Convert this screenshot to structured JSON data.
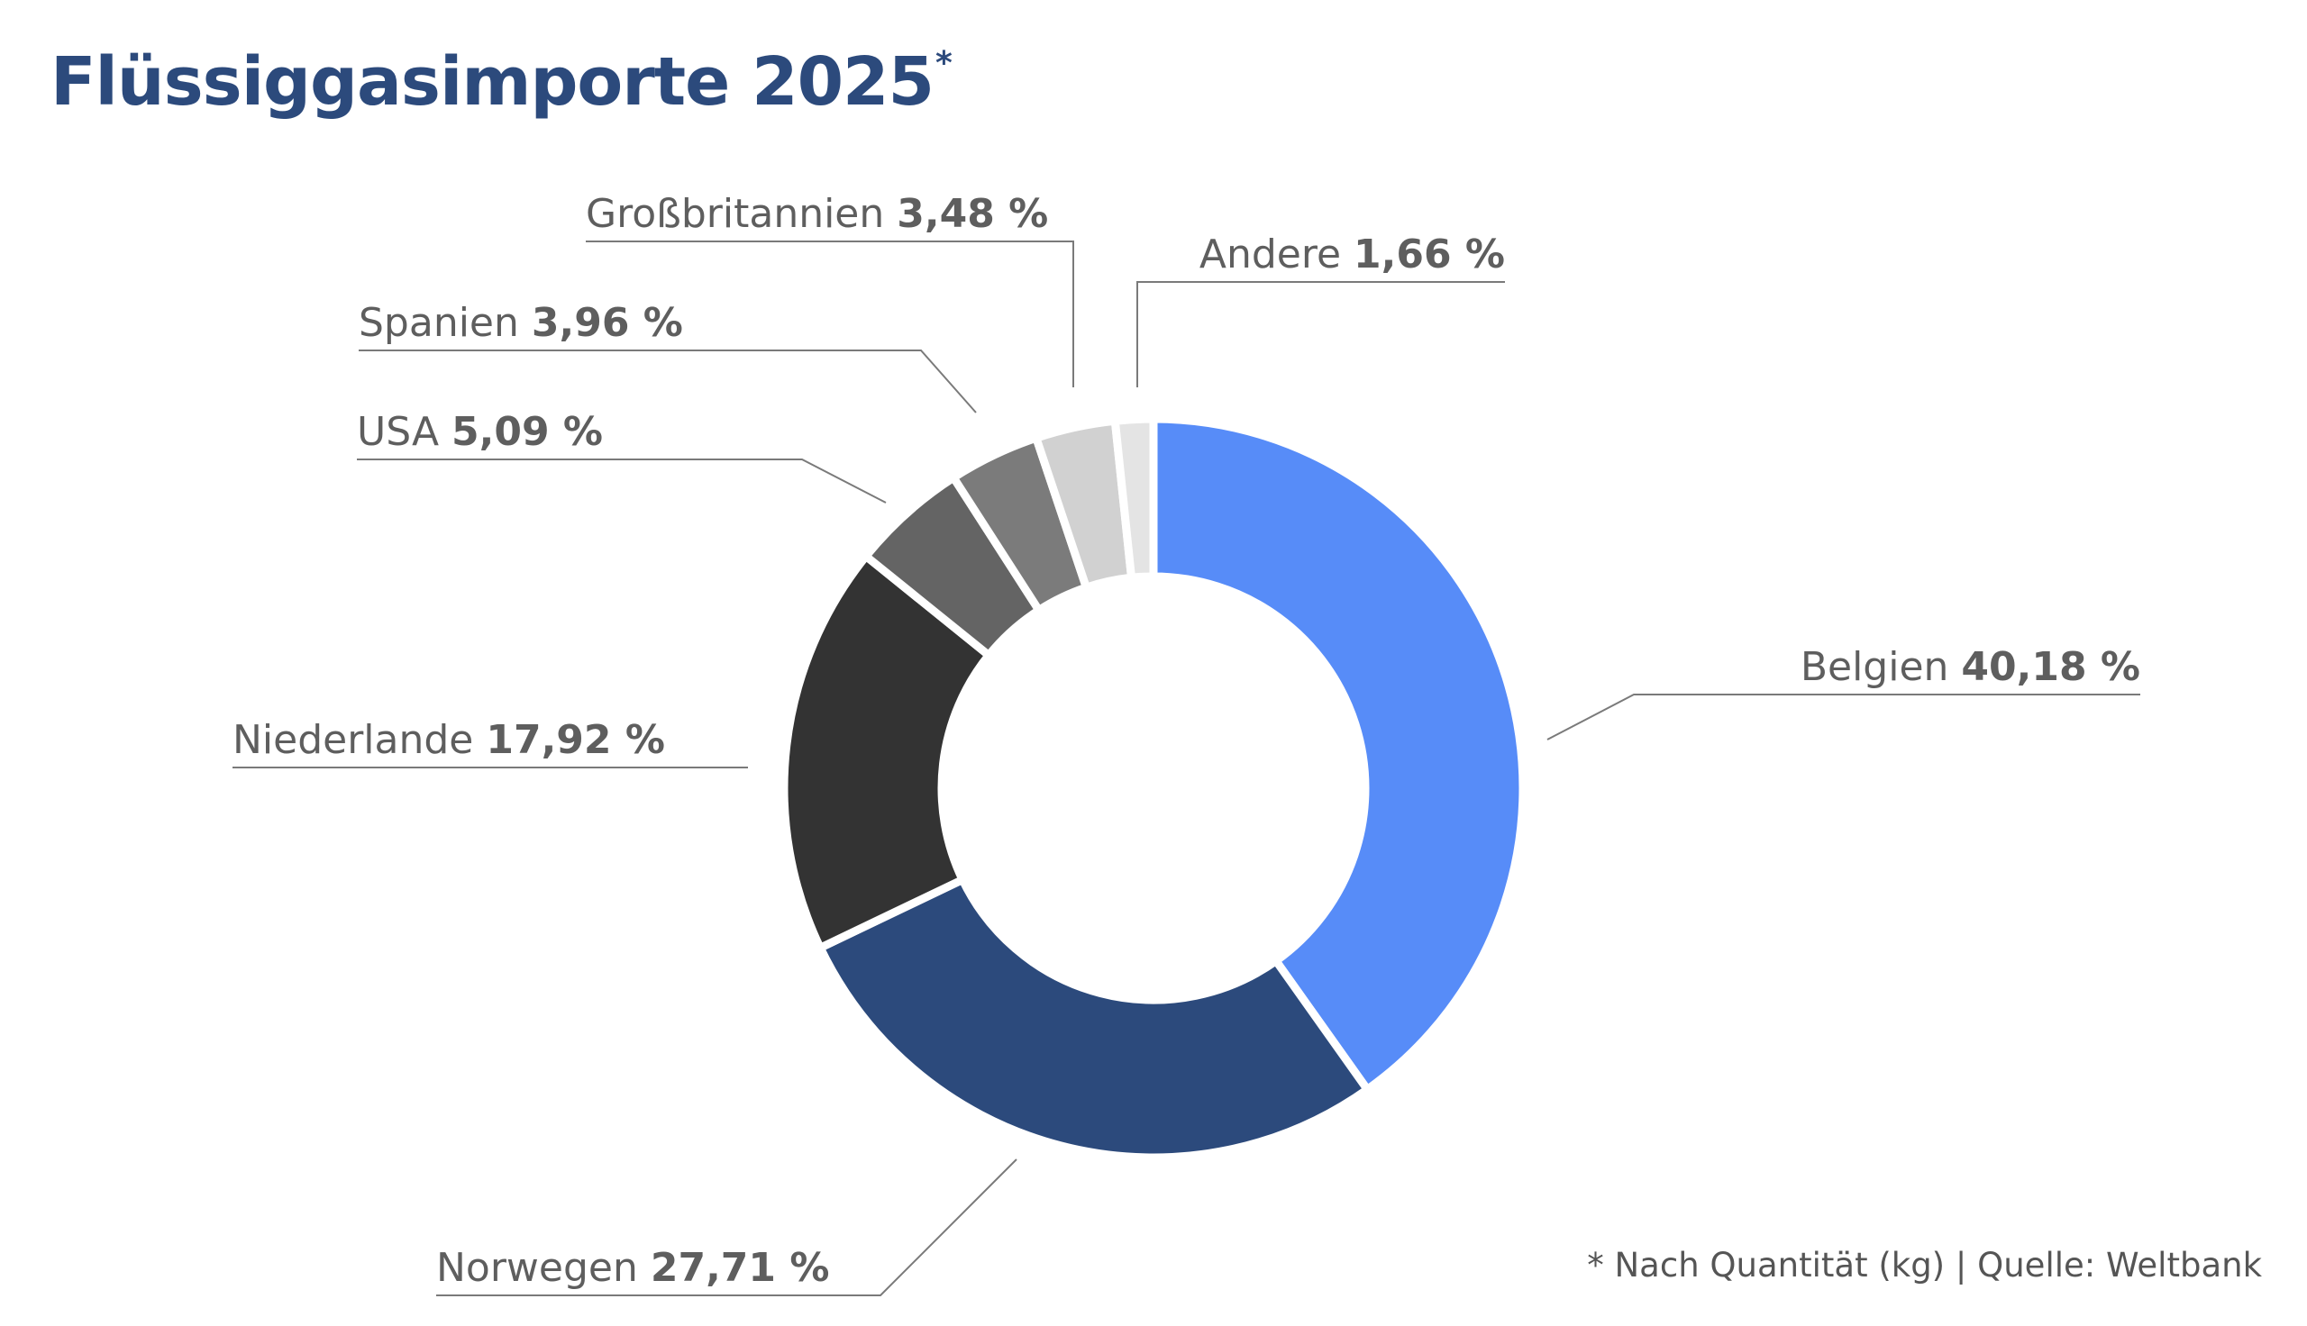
{
  "title": "Flüssiggasimporte 2025",
  "title_marker": "*",
  "footnote": "* Nach Quantität (kg) | Quelle: Weltbank",
  "chart_data": {
    "type": "pie",
    "donut": true,
    "start_angle_deg": 0,
    "direction": "clockwise",
    "slices": [
      {
        "label": "Belgien",
        "value": 40.18,
        "value_label": "40,18 %",
        "color": "#578cf8"
      },
      {
        "label": "Norwegen",
        "value": 27.71,
        "value_label": "27,71 %",
        "color": "#2c4a7c"
      },
      {
        "label": "Niederlande",
        "value": 17.92,
        "value_label": "17,92 %",
        "color": "#333333"
      },
      {
        "label": "USA",
        "value": 5.09,
        "value_label": "5,09 %",
        "color": "#646464"
      },
      {
        "label": "Spanien",
        "value": 3.96,
        "value_label": "3,96 %",
        "color": "#7b7b7b"
      },
      {
        "label": "Großbritannien",
        "value": 3.48,
        "value_label": "3,48 %",
        "color": "#d1d1d1"
      },
      {
        "label": "Andere",
        "value": 1.66,
        "value_label": "1,66 %",
        "color": "#e4e4e4"
      }
    ]
  }
}
